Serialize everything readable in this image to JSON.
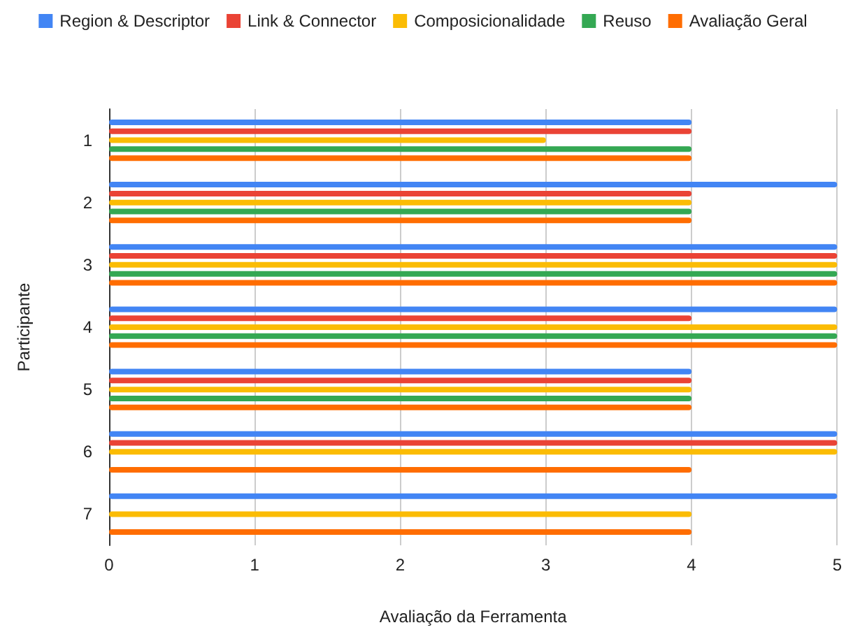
{
  "chart_data": {
    "type": "bar",
    "orientation": "horizontal",
    "xlabel": "Avaliação da Ferramenta",
    "ylabel": "Participante",
    "categories": [
      "1",
      "2",
      "3",
      "4",
      "5",
      "6",
      "7"
    ],
    "series": [
      {
        "name": "Region & Descriptor",
        "color": "#4285f4",
        "values": [
          4,
          5,
          5,
          5,
          4,
          5,
          5
        ]
      },
      {
        "name": "Link & Connector",
        "color": "#ea4335",
        "values": [
          4,
          4,
          5,
          4,
          4,
          5,
          0
        ]
      },
      {
        "name": "Composicionalidade",
        "color": "#fbbc04",
        "values": [
          3,
          4,
          5,
          5,
          4,
          5,
          4
        ]
      },
      {
        "name": "Reuso",
        "color": "#34a853",
        "values": [
          4,
          4,
          5,
          5,
          4,
          0,
          0
        ]
      },
      {
        "name": "Avaliação Geral",
        "color": "#ff6d01",
        "values": [
          4,
          4,
          5,
          5,
          4,
          4,
          4
        ]
      }
    ],
    "xlim": [
      0,
      5
    ],
    "xticks": [
      0,
      1,
      2,
      3,
      4,
      5
    ],
    "grid": "x",
    "legend": "top"
  }
}
